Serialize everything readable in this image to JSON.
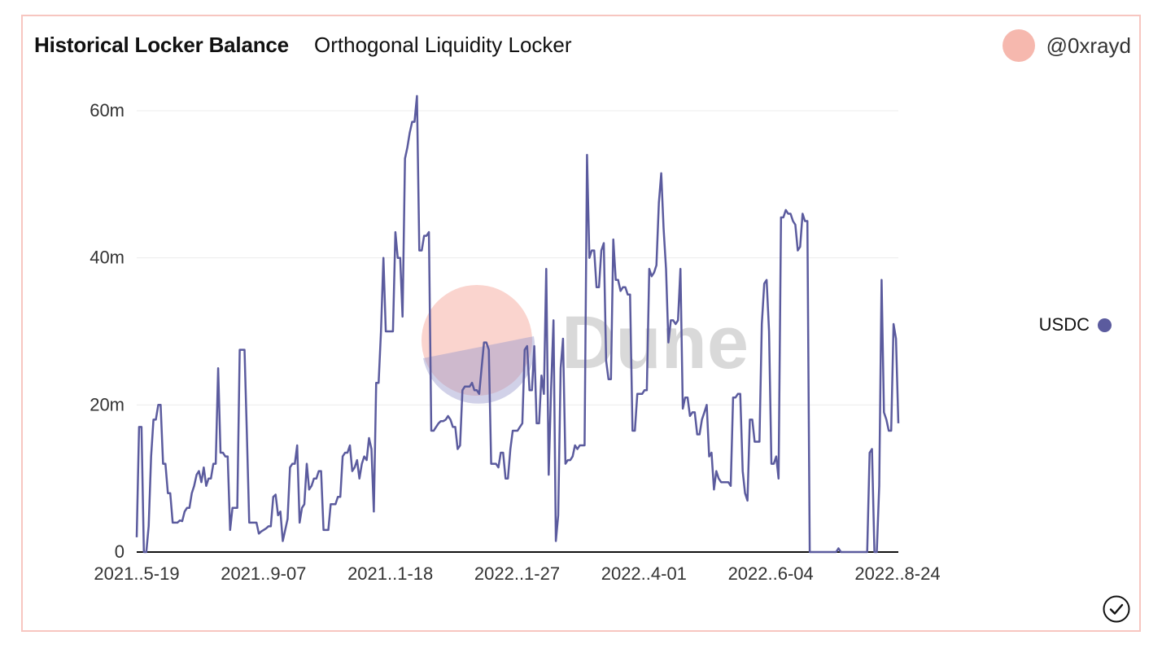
{
  "header": {
    "title": "Historical Locker Balance",
    "subtitle": "Orthogonal Liquidity Locker",
    "author": "@0xrayd"
  },
  "watermark": {
    "text": "Dune"
  },
  "colors": {
    "line": "#5b5b9e",
    "border": "#f7c6c0",
    "avatar": "#f6b8ae",
    "grid": "#ececec"
  },
  "icons": {
    "avatar": "avatar-circle",
    "check": "check-circle-icon"
  },
  "chart_data": {
    "type": "line",
    "title": "Historical Locker Balance",
    "subtitle": "Orthogonal Liquidity Locker",
    "xlabel": "",
    "ylabel": "",
    "ylim": [
      0,
      60000000
    ],
    "yticks": [
      {
        "value": 0,
        "label": "0"
      },
      {
        "value": 20000000,
        "label": "20m"
      },
      {
        "value": 40000000,
        "label": "40m"
      },
      {
        "value": 60000000,
        "label": "60m"
      }
    ],
    "xtick_labels": [
      "2021..5-19",
      "2021..9-07",
      "2021..1-18",
      "2022..1-27",
      "2022..4-01",
      "2022..6-04",
      "2022..8-24"
    ],
    "grid": "horizontal",
    "legend_position": "right",
    "series": [
      {
        "name": "USDC",
        "color": "#5b5b9e",
        "values": [
          2000000,
          17000000,
          17000000,
          0,
          0,
          3500000,
          13000000,
          18000000,
          18000000,
          20000000,
          20000000,
          12000000,
          12000000,
          8000000,
          8000000,
          4000000,
          4000000,
          4000000,
          4300000,
          4200000,
          5500000,
          6000000,
          6000000,
          8000000,
          9000000,
          10500000,
          11000000,
          9500000,
          11500000,
          9000000,
          10000000,
          10000000,
          12000000,
          12000000,
          25000000,
          13500000,
          13500000,
          13000000,
          13000000,
          3000000,
          6000000,
          6000000,
          6000000,
          27500000,
          27500000,
          27500000,
          16000000,
          4000000,
          4000000,
          4000000,
          4000000,
          2500000,
          2800000,
          3000000,
          3200000,
          3500000,
          3500000,
          7500000,
          7800000,
          5000000,
          5500000,
          1500000,
          3000000,
          4500000,
          11500000,
          12000000,
          12000000,
          14500000,
          4000000,
          6000000,
          6500000,
          12000000,
          8500000,
          9000000,
          10000000,
          10000000,
          11000000,
          11000000,
          3000000,
          3000000,
          3000000,
          6500000,
          6500000,
          6500000,
          7500000,
          7500000,
          13000000,
          13500000,
          13500000,
          14500000,
          11000000,
          11500000,
          12500000,
          10000000,
          12000000,
          13000000,
          12500000,
          15500000,
          14000000,
          5500000,
          23000000,
          23000000,
          30000000,
          40000000,
          30000000,
          30000000,
          30000000,
          30000000,
          43500000,
          40000000,
          40000000,
          32000000,
          53500000,
          55000000,
          57000000,
          58500000,
          58500000,
          62000000,
          41000000,
          41000000,
          43000000,
          43000000,
          43500000,
          16500000,
          16500000,
          17000000,
          17500000,
          17800000,
          17800000,
          18000000,
          18500000,
          18000000,
          17000000,
          17000000,
          14000000,
          14500000,
          22000000,
          22500000,
          22500000,
          22500000,
          23000000,
          22000000,
          22000000,
          21500000,
          25000000,
          28500000,
          28500000,
          27500000,
          12000000,
          12000000,
          12000000,
          11500000,
          13500000,
          13500000,
          10000000,
          10000000,
          14000000,
          16500000,
          16500000,
          16500000,
          17000000,
          17500000,
          27500000,
          28000000,
          22000000,
          22000000,
          28000000,
          17500000,
          17500000,
          24000000,
          21500000,
          38500000,
          10500000,
          22000000,
          31500000,
          1500000,
          5000000,
          25000000,
          29000000,
          12000000,
          12500000,
          12500000,
          13000000,
          14500000,
          14000000,
          14500000,
          14500000,
          14500000,
          54000000,
          40000000,
          41000000,
          41000000,
          36000000,
          36000000,
          41000000,
          42000000,
          26000000,
          23500000,
          23500000,
          42500000,
          37000000,
          37000000,
          35500000,
          36000000,
          36000000,
          35000000,
          35000000,
          16500000,
          16500000,
          21500000,
          21500000,
          21500000,
          22000000,
          22000000,
          38500000,
          37500000,
          38000000,
          39000000,
          47500000,
          51500000,
          44000000,
          38500000,
          28500000,
          31500000,
          31500000,
          31000000,
          31500000,
          38500000,
          19500000,
          21000000,
          21000000,
          18500000,
          19000000,
          19000000,
          16000000,
          16000000,
          18000000,
          19000000,
          20000000,
          13000000,
          13500000,
          8500000,
          11000000,
          10000000,
          9500000,
          9500000,
          9500000,
          9500000,
          9000000,
          21000000,
          21000000,
          21500000,
          21500000,
          11000000,
          8000000,
          7000000,
          18000000,
          18000000,
          15000000,
          15000000,
          15000000,
          31000000,
          36500000,
          37000000,
          30000000,
          12000000,
          12000000,
          13000000,
          10000000,
          45500000,
          45500000,
          46500000,
          46000000,
          46000000,
          45000000,
          44500000,
          41000000,
          41500000,
          46000000,
          45000000,
          45000000,
          0,
          0,
          0,
          0,
          0,
          0,
          0,
          0,
          0,
          0,
          0,
          0,
          500000,
          0,
          0,
          0,
          0,
          0,
          0,
          0,
          0,
          0,
          0,
          0,
          0,
          13500000,
          14000000,
          0,
          0,
          9000000,
          37000000,
          19000000,
          18000000,
          16500000,
          16500000,
          31000000,
          29000000,
          17500000
        ]
      }
    ]
  }
}
